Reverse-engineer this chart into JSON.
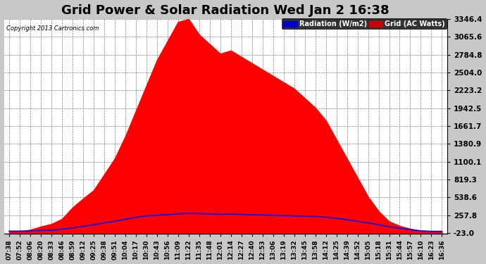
{
  "title": "Grid Power & Solar Radiation Wed Jan 2 16:38",
  "copyright": "Copyright 2013 Cartronics.com",
  "legend_labels": [
    "Radiation (W/m2)",
    "Grid (AC Watts)"
  ],
  "legend_colors": [
    "#0000ff",
    "#ff0000"
  ],
  "yticks": [
    -23.0,
    257.8,
    538.6,
    819.3,
    1100.1,
    1380.9,
    1661.7,
    1942.5,
    2223.2,
    2504.0,
    2784.8,
    3065.6,
    3346.4
  ],
  "ymin": -23.0,
  "ymax": 3346.4,
  "background_color": "#c8c8c8",
  "plot_bg_color": "#ffffff",
  "grid_color": "#808080",
  "title_fontsize": 13,
  "xtick_labels": [
    "07:38",
    "07:52",
    "08:06",
    "08:20",
    "08:33",
    "08:46",
    "08:59",
    "09:12",
    "09:25",
    "09:38",
    "09:51",
    "10:04",
    "10:17",
    "10:30",
    "10:43",
    "10:56",
    "11:09",
    "11:22",
    "11:35",
    "11:48",
    "12:01",
    "12:14",
    "12:27",
    "12:40",
    "12:53",
    "13:06",
    "13:19",
    "13:32",
    "13:45",
    "13:58",
    "14:12",
    "14:25",
    "14:39",
    "14:52",
    "15:05",
    "15:18",
    "15:31",
    "15:44",
    "15:57",
    "16:10",
    "16:23",
    "16:36"
  ],
  "grid_values": [
    0,
    0,
    30,
    80,
    120,
    200,
    380,
    520,
    650,
    900,
    1150,
    1500,
    1900,
    2300,
    2700,
    3000,
    3300,
    3346,
    3100,
    2950,
    2800,
    2850,
    2750,
    2650,
    2550,
    2450,
    2350,
    2250,
    2100,
    1950,
    1750,
    1450,
    1150,
    850,
    550,
    320,
    160,
    90,
    45,
    12,
    0,
    0
  ],
  "radiation_values": [
    8,
    8,
    12,
    18,
    22,
    38,
    58,
    85,
    108,
    138,
    165,
    195,
    225,
    248,
    258,
    268,
    278,
    288,
    283,
    278,
    272,
    276,
    270,
    265,
    262,
    258,
    252,
    248,
    242,
    238,
    228,
    208,
    188,
    162,
    138,
    108,
    78,
    52,
    32,
    12,
    5,
    5
  ]
}
